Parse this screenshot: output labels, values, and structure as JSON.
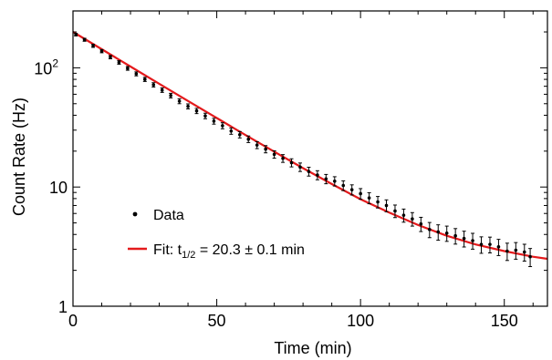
{
  "chart_data": {
    "type": "scatter",
    "xlabel": "Time (min)",
    "ylabel": "Count Rate (Hz)",
    "xlim": [
      0,
      165
    ],
    "ylim": [
      1,
      300
    ],
    "yscale": "log",
    "x_ticks": [
      {
        "value": 0,
        "label": "0"
      },
      {
        "value": 50,
        "label": "50"
      },
      {
        "value": 100,
        "label": "100"
      },
      {
        "value": 150,
        "label": "150"
      }
    ],
    "y_ticks": [
      {
        "value": 1,
        "label": "1"
      },
      {
        "value": 10,
        "label": "10"
      },
      {
        "value": 100,
        "label_base": "10",
        "label_exp": "2"
      }
    ],
    "grid": false,
    "legend_position": "bottom-left",
    "series": [
      {
        "name": "Data",
        "kind": "points_with_error_bars",
        "color": "#000000",
        "x": [
          1,
          4,
          7,
          10,
          13,
          16,
          19,
          22,
          25,
          28,
          31,
          34,
          37,
          40,
          43,
          46,
          49,
          52,
          55,
          58,
          61,
          64,
          67,
          70,
          73,
          76,
          79,
          82,
          85,
          88,
          91,
          94,
          97,
          100,
          103,
          106,
          109,
          112,
          115,
          118,
          121,
          124,
          127,
          130,
          133,
          136,
          139,
          142,
          145,
          148,
          151,
          154,
          157,
          159
        ],
        "y": [
          190,
          172,
          153,
          138,
          123,
          111,
          99,
          89,
          80,
          72,
          65,
          58.5,
          52.5,
          47.5,
          43.5,
          39.5,
          35.7,
          32.7,
          29.5,
          27.5,
          25.2,
          22.5,
          20.8,
          18.8,
          17.4,
          16.0,
          14.7,
          13.5,
          12.6,
          11.7,
          11.2,
          10.3,
          9.5,
          8.8,
          8.1,
          7.5,
          7.0,
          6.3,
          5.8,
          5.4,
          4.9,
          4.4,
          4.2,
          4.1,
          3.9,
          3.7,
          3.55,
          3.3,
          3.3,
          3.15,
          2.9,
          2.95,
          2.85,
          2.6
        ],
        "err": [
          5,
          5,
          4.6,
          4.3,
          4.0,
          3.8,
          3.6,
          3.4,
          3.2,
          3.0,
          2.8,
          2.6,
          2.5,
          2.3,
          2.2,
          2.1,
          2.0,
          1.9,
          1.8,
          1.7,
          1.6,
          1.5,
          1.45,
          1.35,
          1.3,
          1.25,
          1.2,
          1.15,
          1.1,
          1.05,
          1.0,
          0.97,
          0.93,
          0.9,
          0.86,
          0.83,
          0.8,
          0.76,
          0.73,
          0.7,
          0.67,
          0.64,
          0.62,
          0.6,
          0.58,
          0.56,
          0.54,
          0.52,
          0.5,
          0.49,
          0.48,
          0.47,
          0.46,
          0.45
        ]
      },
      {
        "name_prefix": "Fit: t",
        "name_subscript": "1/2",
        "name_suffix": " =  20.3 ± 0.1 min",
        "kind": "fit_line",
        "color": "#e41a1c",
        "x": [
          0,
          10,
          20,
          30,
          40,
          50,
          60,
          70,
          80,
          90,
          100,
          110,
          120,
          130,
          140,
          150,
          160,
          165
        ],
        "y": [
          200,
          143.3,
          102.5,
          73.5,
          52.7,
          37.9,
          27.3,
          19.8,
          14.4,
          10.6,
          7.9,
          6.1,
          4.8,
          3.9,
          3.3,
          2.9,
          2.6,
          2.5
        ]
      }
    ]
  }
}
